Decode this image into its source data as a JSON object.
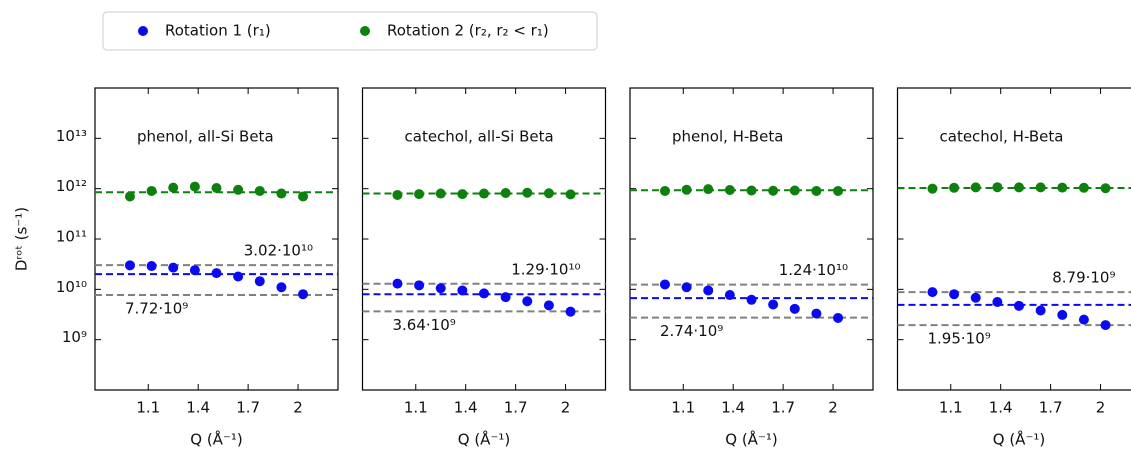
{
  "chart_data": [
    {
      "type": "scatter",
      "title": "phenol, all-Si Beta",
      "xlabel": "Q (Å⁻¹)",
      "ylabel": "Dʳᵒᵗ (s⁻¹)",
      "log_y": true,
      "xlim": [
        0.78,
        2.24
      ],
      "xticks": [
        1.1,
        1.4,
        1.7,
        2.0
      ],
      "ylim": [
        100000000.0,
        100000000000000.0
      ],
      "yticks": [
        {
          "value": 1000000000.0,
          "label": "10⁹"
        },
        {
          "value": 10000000000.0,
          "label": "10¹⁰"
        },
        {
          "value": 100000000000.0,
          "label": "10¹¹"
        },
        {
          "value": 1000000000000.0,
          "label": "10¹²"
        },
        {
          "value": 10000000000000.0,
          "label": "10¹³"
        }
      ],
      "x": [
        0.99,
        1.12,
        1.25,
        1.38,
        1.51,
        1.64,
        1.77,
        1.9,
        2.03
      ],
      "series": [
        {
          "name": "Rotation 1 (r₁)",
          "color": "#0a0af0",
          "values": [
            30000000000.0,
            29000000000.0,
            27000000000.0,
            24000000000.0,
            21000000000.0,
            18000000000.0,
            14500000000.0,
            11000000000.0,
            8000000000.0
          ],
          "fit": 20000000000.0
        },
        {
          "name": "Rotation 2 (r₂, r₂ < r₁)",
          "color": "#0e800e",
          "values": [
            700000000000.0,
            900000000000.0,
            1050000000000.0,
            1100000000000.0,
            1030000000000.0,
            950000000000.0,
            900000000000.0,
            800000000000.0,
            700000000000.0
          ],
          "fit": 850000000000.0
        }
      ],
      "bounds": [
        {
          "value": 30200000000.0,
          "label": "3.02·10¹⁰"
        },
        {
          "value": 7720000000.0,
          "label": "7.72·10⁹"
        }
      ],
      "bounds_color": "#808080"
    },
    {
      "type": "scatter",
      "title": "catechol, all-Si Beta",
      "xlabel": "Q (Å⁻¹)",
      "log_y": true,
      "xlim": [
        0.78,
        2.24
      ],
      "xticks": [
        1.1,
        1.4,
        1.7,
        2.0
      ],
      "ylim": [
        100000000.0,
        100000000000000.0
      ],
      "x": [
        0.99,
        1.12,
        1.25,
        1.38,
        1.51,
        1.64,
        1.77,
        1.9,
        2.03
      ],
      "series": [
        {
          "color": "#0a0af0",
          "values": [
            13000000000.0,
            12000000000.0,
            10500000000.0,
            9500000000.0,
            8300000000.0,
            7000000000.0,
            5800000000.0,
            4800000000.0,
            3600000000.0
          ],
          "fit": 8000000000.0
        },
        {
          "color": "#0e800e",
          "values": [
            750000000000.0,
            780000000000.0,
            800000000000.0,
            780000000000.0,
            800000000000.0,
            820000000000.0,
            830000000000.0,
            810000000000.0,
            770000000000.0
          ],
          "fit": 800000000000.0
        }
      ],
      "bounds": [
        {
          "value": 12900000000.0,
          "label": "1.29·10¹⁰"
        },
        {
          "value": 3640000000.0,
          "label": "3.64·10⁹"
        }
      ],
      "bounds_color": "#808080"
    },
    {
      "type": "scatter",
      "title": "phenol, H-Beta",
      "xlabel": "Q (Å⁻¹)",
      "log_y": true,
      "xlim": [
        0.78,
        2.24
      ],
      "xticks": [
        1.1,
        1.4,
        1.7,
        2.0
      ],
      "ylim": [
        100000000.0,
        100000000000000.0
      ],
      "x": [
        0.99,
        1.12,
        1.25,
        1.38,
        1.51,
        1.64,
        1.77,
        1.9,
        2.03
      ],
      "series": [
        {
          "color": "#0a0af0",
          "values": [
            12500000000.0,
            11000000000.0,
            9500000000.0,
            7700000000.0,
            6200000000.0,
            5000000000.0,
            4100000000.0,
            3300000000.0,
            2700000000.0
          ],
          "fit": 6700000000.0
        },
        {
          "color": "#0e800e",
          "values": [
            900000000000.0,
            950000000000.0,
            980000000000.0,
            940000000000.0,
            920000000000.0,
            910000000000.0,
            920000000000.0,
            900000000000.0,
            900000000000.0
          ],
          "fit": 930000000000.0
        }
      ],
      "bounds": [
        {
          "value": 12400000000.0,
          "label": "1.24·10¹⁰"
        },
        {
          "value": 2740000000.0,
          "label": "2.74·10⁹"
        }
      ],
      "bounds_color": "#808080"
    },
    {
      "type": "scatter",
      "title": "catechol, H-Beta",
      "xlabel": "Q (Å⁻¹)",
      "log_y": true,
      "xlim": [
        0.78,
        2.24
      ],
      "xticks": [
        1.1,
        1.4,
        1.7,
        2.0
      ],
      "ylim": [
        100000000.0,
        100000000000000.0
      ],
      "x": [
        0.99,
        1.12,
        1.25,
        1.38,
        1.51,
        1.64,
        1.77,
        1.9,
        2.03
      ],
      "series": [
        {
          "color": "#0a0af0",
          "values": [
            8800000000.0,
            8000000000.0,
            6800000000.0,
            5600000000.0,
            4700000000.0,
            3800000000.0,
            3100000000.0,
            2500000000.0,
            1950000000.0
          ],
          "fit": 4900000000.0
        },
        {
          "color": "#0e800e",
          "values": [
            1000000000000.0,
            1040000000000.0,
            1060000000000.0,
            1070000000000.0,
            1060000000000.0,
            1060000000000.0,
            1050000000000.0,
            1040000000000.0,
            1020000000000.0
          ],
          "fit": 1030000000000.0
        }
      ],
      "bounds": [
        {
          "value": 8790000000.0,
          "label": "8.79·10⁹"
        },
        {
          "value": 1950000000.0,
          "label": "1.95·10⁹"
        }
      ],
      "bounds_color": "#808080"
    }
  ]
}
